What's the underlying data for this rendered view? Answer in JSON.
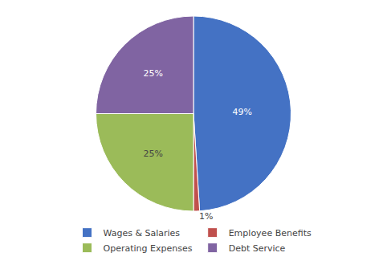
{
  "chart_data": {
    "type": "pie",
    "categories": [
      "Wages & Salaries",
      "Employee Benefits",
      "Operating Expenses",
      "Debt Service"
    ],
    "values": [
      49,
      1,
      25,
      25
    ],
    "value_labels": [
      "49%",
      "1%",
      "25%",
      "25%"
    ],
    "colors": [
      "#4472c4",
      "#c0504d",
      "#9bbb59",
      "#8064a2"
    ],
    "data_labels": true,
    "legend": "bottom"
  }
}
